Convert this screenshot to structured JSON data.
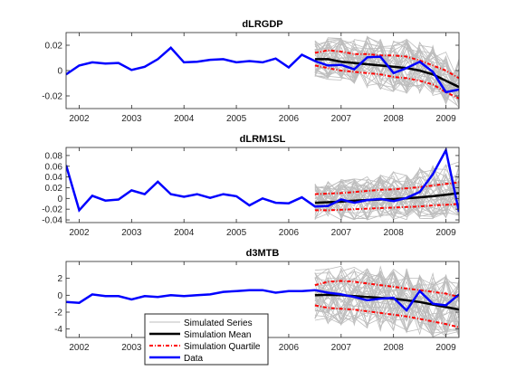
{
  "figure": {
    "legend": {
      "placement": "lower-middle",
      "entries": [
        {
          "label": "Simulated Series",
          "style": "thin-gray"
        },
        {
          "label": "Simulation Mean",
          "style": "thick-black"
        },
        {
          "label": "Simulation Quartile",
          "style": "red-dotted"
        },
        {
          "label": "Data",
          "style": "thick-blue"
        }
      ]
    },
    "colors": {
      "data": "#0000ff",
      "mean": "#000000",
      "quartile": "#ff0000",
      "simulated": "#bdbdbd",
      "axis": "#262626"
    }
  },
  "chart_data": [
    {
      "type": "line",
      "title": "dLRGDP",
      "xlim": [
        2001.75,
        2009.25
      ],
      "ylim": [
        -0.03,
        0.03
      ],
      "xticks": [
        2002,
        2003,
        2004,
        2005,
        2006,
        2007,
        2008,
        2009
      ],
      "yticks": [
        -0.02,
        0,
        0.02
      ],
      "yticklabels": [
        "-0.02",
        "0",
        "0.02"
      ],
      "grid": false,
      "series": [
        {
          "name": "Data",
          "x": [
            2001.75,
            2002.0,
            2002.25,
            2002.5,
            2002.75,
            2003.0,
            2003.25,
            2003.5,
            2003.75,
            2004.0,
            2004.25,
            2004.5,
            2004.75,
            2005.0,
            2005.25,
            2005.5,
            2005.75,
            2006.0,
            2006.25,
            2006.5,
            2006.75,
            2007.0,
            2007.25,
            2007.5,
            2007.75,
            2008.0,
            2008.25,
            2008.5,
            2008.75,
            2009.0,
            2009.25
          ],
          "values": [
            -0.003,
            0.004,
            0.0065,
            0.0055,
            0.006,
            0.0005,
            0.003,
            0.009,
            0.018,
            0.0065,
            0.007,
            0.0085,
            0.009,
            0.0065,
            0.0075,
            0.0065,
            0.0095,
            0.0025,
            0.0125,
            0.0075,
            0.004,
            0.0045,
            0.001,
            0.0105,
            0.011,
            -0.002,
            0.002,
            0.007,
            -0.001,
            -0.017,
            -0.015
          ]
        },
        {
          "name": "Simulation Mean",
          "x": [
            2006.5,
            2006.75,
            2007.0,
            2007.25,
            2007.5,
            2007.75,
            2008.0,
            2008.25,
            2008.5,
            2008.75,
            2009.0,
            2009.25
          ],
          "values": [
            0.009,
            0.009,
            0.007,
            0.006,
            0.005,
            0.004,
            0.003,
            0.002,
            0.0,
            -0.003,
            -0.008,
            -0.013
          ]
        },
        {
          "name": "Simulation Quartile",
          "x": [
            2006.5,
            2006.75,
            2007.0,
            2007.25,
            2007.5,
            2007.75,
            2008.0,
            2008.25,
            2008.5,
            2008.75,
            2009.0,
            2009.25
          ],
          "values": [
            0.014,
            0.016,
            0.015,
            0.013,
            0.013,
            0.012,
            0.012,
            0.011,
            0.008,
            0.004,
            0.0,
            -0.006
          ]
        },
        {
          "name": "Simulation Quartile",
          "x": [
            2006.5,
            2006.75,
            2007.0,
            2007.25,
            2007.5,
            2007.75,
            2008.0,
            2008.25,
            2008.5,
            2008.75,
            2009.0,
            2009.25
          ],
          "values": [
            0.004,
            0.002,
            0.0,
            -0.001,
            -0.002,
            -0.003,
            -0.005,
            -0.006,
            -0.008,
            -0.011,
            -0.017,
            -0.022
          ]
        }
      ],
      "simulated_band": {
        "name": "Simulated Series",
        "x_start": 2006.5,
        "x_end": 2009.25,
        "paths": 40,
        "lower": [
          -0.005,
          -0.008,
          -0.01,
          -0.012,
          -0.014,
          -0.015,
          -0.017,
          -0.018,
          -0.02,
          -0.023,
          -0.027,
          -0.03
        ],
        "upper": [
          0.024,
          0.026,
          0.026,
          0.027,
          0.027,
          0.026,
          0.026,
          0.025,
          0.023,
          0.02,
          0.016,
          0.01
        ]
      }
    },
    {
      "type": "line",
      "title": "dLRM1SL",
      "xlim": [
        2001.75,
        2009.25
      ],
      "ylim": [
        -0.045,
        0.095
      ],
      "xticks": [
        2002,
        2003,
        2004,
        2005,
        2006,
        2007,
        2008,
        2009
      ],
      "yticks": [
        -0.04,
        -0.02,
        0,
        0.02,
        0.04,
        0.06,
        0.08
      ],
      "yticklabels": [
        "-0.04",
        "-0.02",
        "0",
        "0.02",
        "0.04",
        "0.06",
        "0.08"
      ],
      "grid": false,
      "series": [
        {
          "name": "Data",
          "x": [
            2001.75,
            2002.0,
            2002.25,
            2002.5,
            2002.75,
            2003.0,
            2003.25,
            2003.5,
            2003.75,
            2004.0,
            2004.25,
            2004.5,
            2004.75,
            2005.0,
            2005.25,
            2005.5,
            2005.75,
            2006.0,
            2006.25,
            2006.5,
            2006.75,
            2007.0,
            2007.25,
            2007.5,
            2007.75,
            2008.0,
            2008.25,
            2008.5,
            2008.75,
            2009.0,
            2009.25
          ],
          "values": [
            0.062,
            -0.022,
            0.005,
            -0.004,
            -0.002,
            0.015,
            0.008,
            0.031,
            0.008,
            0.003,
            0.008,
            0.001,
            0.008,
            0.004,
            -0.013,
            0.0,
            -0.008,
            -0.009,
            0.002,
            -0.015,
            -0.014,
            -0.002,
            -0.008,
            -0.003,
            -0.001,
            -0.005,
            0.001,
            0.012,
            0.045,
            0.09,
            -0.025
          ]
        },
        {
          "name": "Simulation Mean",
          "x": [
            2006.5,
            2006.75,
            2007.0,
            2007.25,
            2007.5,
            2007.75,
            2008.0,
            2008.25,
            2008.5,
            2008.75,
            2009.0,
            2009.25
          ],
          "values": [
            -0.008,
            -0.007,
            -0.006,
            -0.004,
            -0.003,
            -0.002,
            -0.001,
            0.0,
            0.002,
            0.004,
            0.007,
            0.01
          ]
        },
        {
          "name": "Simulation Quartile",
          "x": [
            2006.5,
            2006.75,
            2007.0,
            2007.25,
            2007.5,
            2007.75,
            2008.0,
            2008.25,
            2008.5,
            2008.75,
            2009.0,
            2009.25
          ],
          "values": [
            0.008,
            0.009,
            0.01,
            0.012,
            0.014,
            0.016,
            0.017,
            0.019,
            0.021,
            0.024,
            0.027,
            0.03
          ]
        },
        {
          "name": "Simulation Quartile",
          "x": [
            2006.5,
            2006.75,
            2007.0,
            2007.25,
            2007.5,
            2007.75,
            2008.0,
            2008.25,
            2008.5,
            2008.75,
            2009.0,
            2009.25
          ],
          "values": [
            -0.022,
            -0.022,
            -0.021,
            -0.02,
            -0.019,
            -0.018,
            -0.017,
            -0.016,
            -0.015,
            -0.013,
            -0.012,
            -0.01
          ]
        }
      ],
      "simulated_band": {
        "name": "Simulated Series",
        "x_start": 2006.5,
        "x_end": 2009.25,
        "paths": 40,
        "lower": [
          -0.04,
          -0.04,
          -0.04,
          -0.04,
          -0.04,
          -0.04,
          -0.04,
          -0.04,
          -0.04,
          -0.038,
          -0.036,
          -0.034
        ],
        "upper": [
          0.028,
          0.032,
          0.036,
          0.04,
          0.043,
          0.046,
          0.05,
          0.054,
          0.058,
          0.062,
          0.066,
          0.07
        ]
      }
    },
    {
      "type": "line",
      "title": "d3MTB",
      "xlim": [
        2001.75,
        2009.25
      ],
      "ylim": [
        -5,
        4
      ],
      "xticks": [
        2002,
        2003,
        2004,
        2005,
        2006,
        2007,
        2008,
        2009
      ],
      "yticks": [
        -4,
        -2,
        0,
        2
      ],
      "yticklabels": [
        "-4",
        "-2",
        "0",
        "2"
      ],
      "grid": false,
      "series": [
        {
          "name": "Data",
          "x": [
            2001.75,
            2002.0,
            2002.25,
            2002.5,
            2002.75,
            2003.0,
            2003.25,
            2003.5,
            2003.75,
            2004.0,
            2004.25,
            2004.5,
            2004.75,
            2005.0,
            2005.25,
            2005.5,
            2005.75,
            2006.0,
            2006.25,
            2006.5,
            2006.75,
            2007.0,
            2007.25,
            2007.5,
            2007.75,
            2008.0,
            2008.25,
            2008.5,
            2008.75,
            2009.0,
            2009.25
          ],
          "values": [
            -0.8,
            -0.9,
            0.1,
            -0.1,
            -0.1,
            -0.5,
            -0.1,
            -0.2,
            0.0,
            -0.1,
            0.0,
            0.1,
            0.4,
            0.5,
            0.6,
            0.6,
            0.3,
            0.5,
            0.5,
            0.6,
            0.3,
            0.1,
            -0.2,
            -0.6,
            -0.4,
            -0.3,
            -1.8,
            0.5,
            -1.0,
            -1.2,
            0.1
          ]
        },
        {
          "name": "Simulation Mean",
          "x": [
            2006.5,
            2006.75,
            2007.0,
            2007.25,
            2007.5,
            2007.75,
            2008.0,
            2008.25,
            2008.5,
            2008.75,
            2009.0,
            2009.25
          ],
          "values": [
            0.0,
            0.05,
            0.0,
            -0.1,
            -0.2,
            -0.3,
            -0.4,
            -0.6,
            -0.8,
            -1.1,
            -1.4,
            -1.7
          ]
        },
        {
          "name": "Simulation Quartile",
          "x": [
            2006.5,
            2006.75,
            2007.0,
            2007.25,
            2007.5,
            2007.75,
            2008.0,
            2008.25,
            2008.5,
            2008.75,
            2009.0,
            2009.25
          ],
          "values": [
            1.2,
            1.6,
            1.7,
            1.6,
            1.4,
            1.2,
            1.0,
            0.8,
            0.6,
            0.4,
            0.2,
            -0.2
          ]
        },
        {
          "name": "Simulation Quartile",
          "x": [
            2006.5,
            2006.75,
            2007.0,
            2007.25,
            2007.5,
            2007.75,
            2008.0,
            2008.25,
            2008.5,
            2008.75,
            2009.0,
            2009.25
          ],
          "values": [
            -1.2,
            -1.5,
            -1.6,
            -1.7,
            -1.9,
            -2.1,
            -2.3,
            -2.5,
            -2.8,
            -3.1,
            -3.4,
            -3.8
          ]
        }
      ],
      "simulated_band": {
        "name": "Simulated Series",
        "x_start": 2006.5,
        "x_end": 2009.25,
        "paths": 40,
        "lower": [
          -3.0,
          -3.4,
          -3.6,
          -3.8,
          -4.0,
          -4.2,
          -4.4,
          -4.6,
          -4.8,
          -5.0,
          -5.0,
          -5.0
        ],
        "upper": [
          3.0,
          3.4,
          3.6,
          3.6,
          3.5,
          3.4,
          3.3,
          3.2,
          3.0,
          2.8,
          2.5,
          2.2
        ]
      }
    }
  ]
}
